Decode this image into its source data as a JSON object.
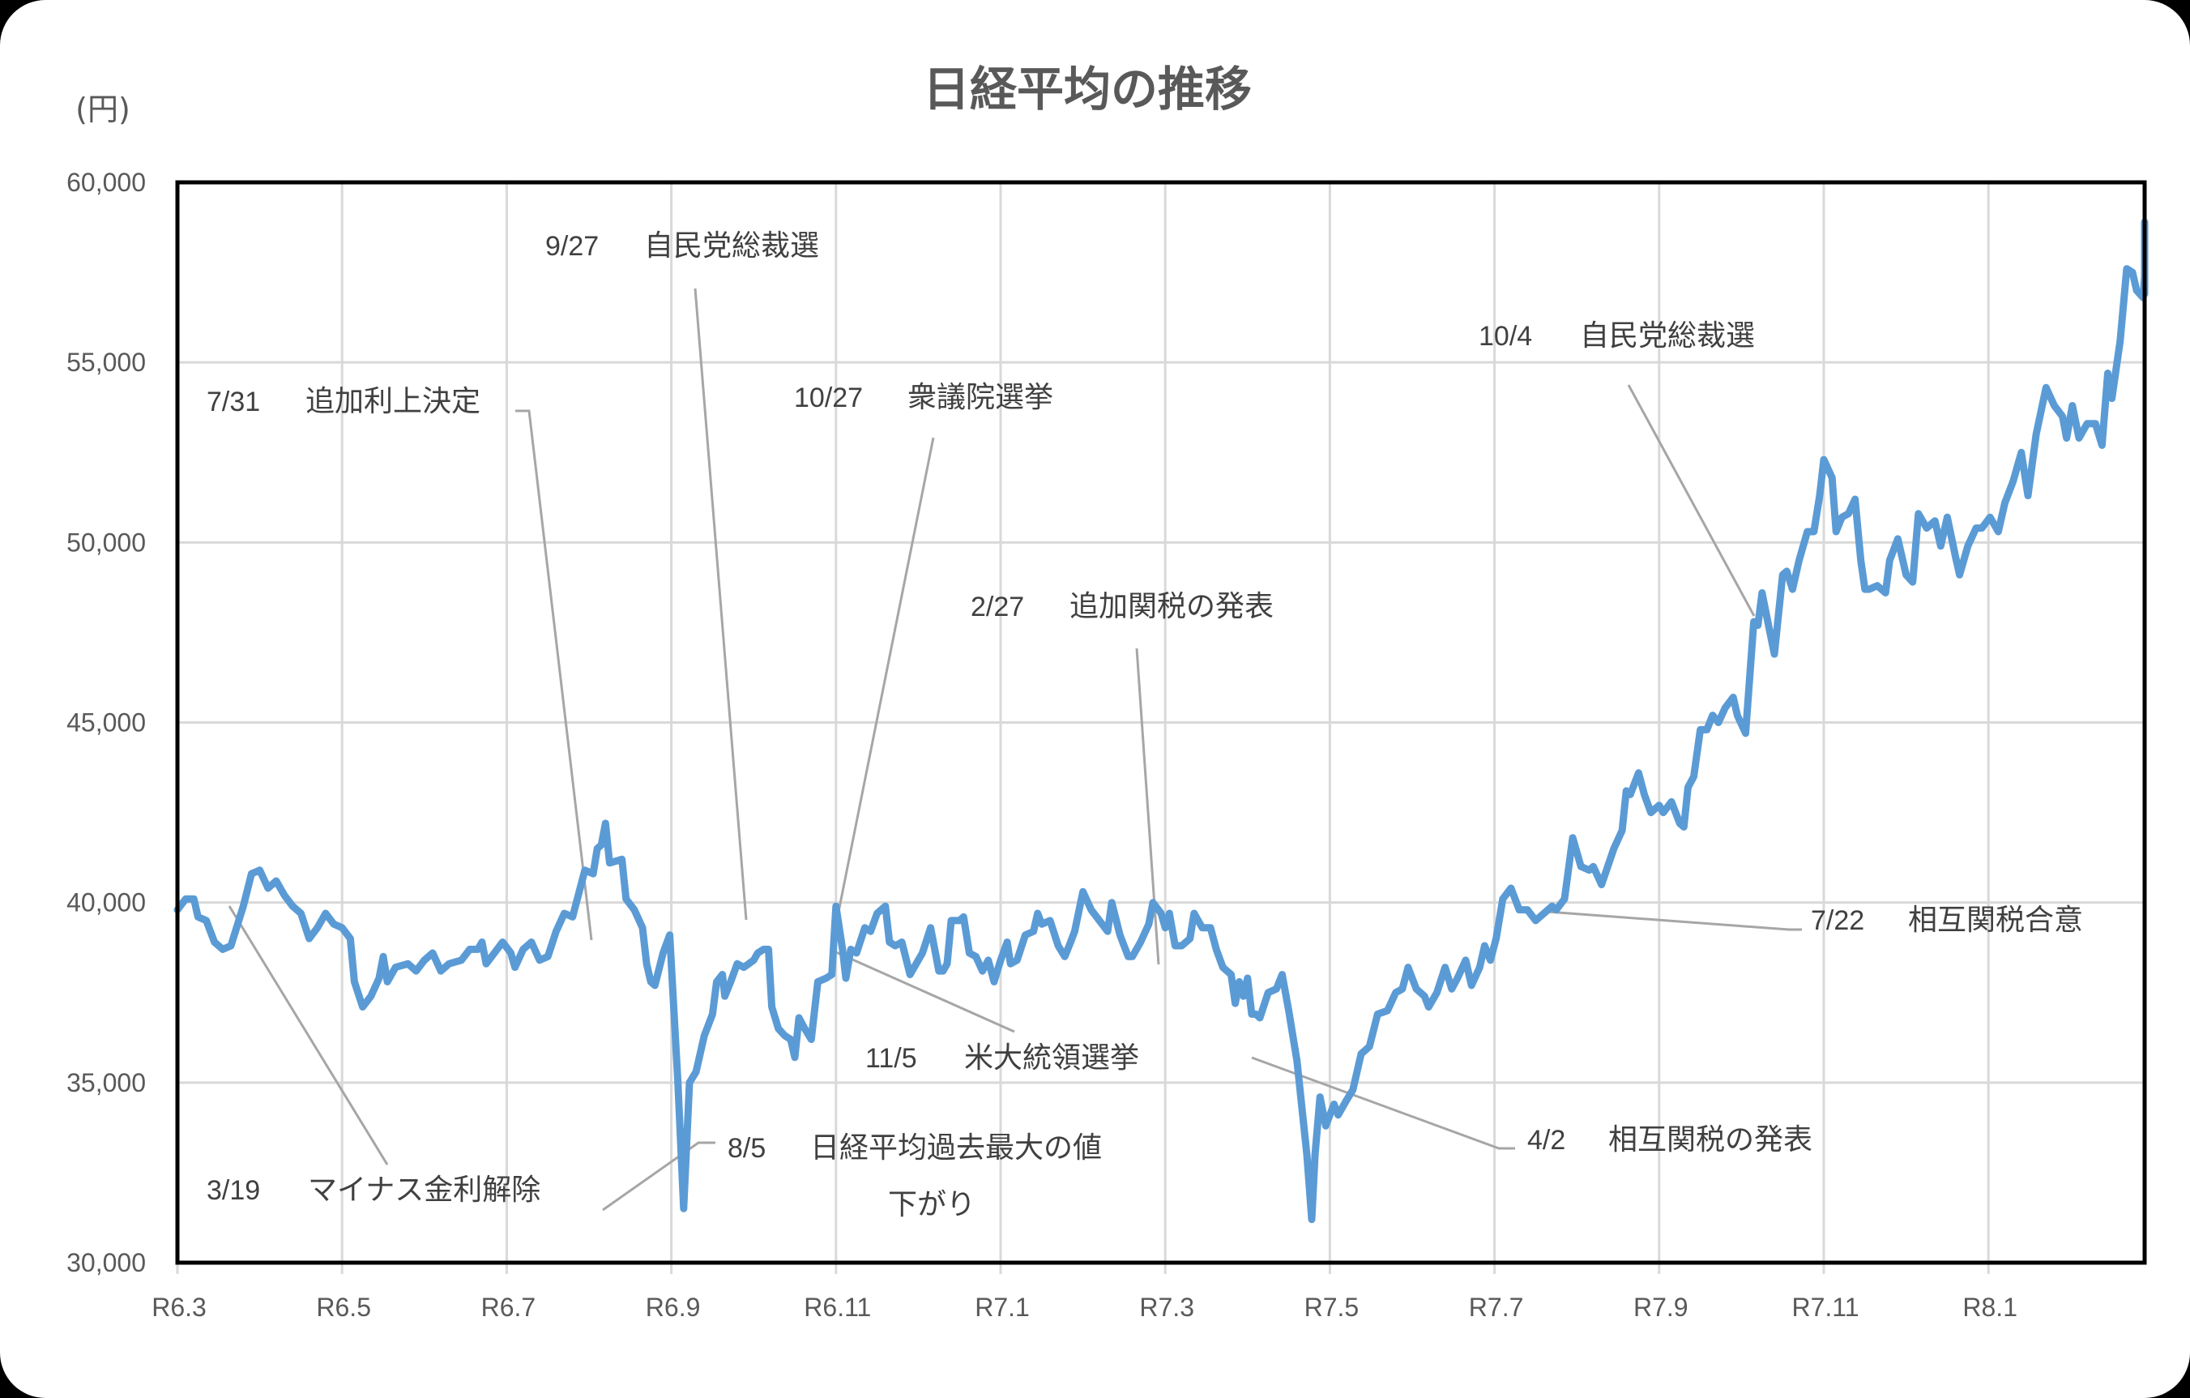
{
  "chart_data": {
    "type": "line",
    "title": "日経平均の推移",
    "ylabel": "(円)",
    "xlabel": "",
    "ylim": [
      30000,
      60000
    ],
    "yticks": [
      "30,000",
      "35,000",
      "40,000",
      "45,000",
      "50,000",
      "55,000",
      "60,000"
    ],
    "ytick_values": [
      30000,
      35000,
      40000,
      45000,
      50000,
      55000,
      60000
    ],
    "xticks": [
      "R6.3",
      "R6.5",
      "R6.7",
      "R6.9",
      "R6.11",
      "R7.1",
      "R7.3",
      "R7.5",
      "R7.7",
      "R7.9",
      "R7.11",
      "R8.1"
    ],
    "xtick_month_offsets": [
      0,
      2,
      4,
      6,
      8,
      10,
      12,
      14,
      16,
      18,
      20,
      22
    ],
    "x_unit": "months since R6.3",
    "xlim": [
      0,
      23.9
    ],
    "grid": true,
    "legend": null,
    "series": [
      {
        "name": "日経平均",
        "color": "#5B9BD5",
        "points": [
          [
            0.0,
            39800
          ],
          [
            0.1,
            40100
          ],
          [
            0.2,
            40100
          ],
          [
            0.25,
            39600
          ],
          [
            0.35,
            39500
          ],
          [
            0.45,
            38900
          ],
          [
            0.55,
            38700
          ],
          [
            0.65,
            38800
          ],
          [
            0.8,
            39900
          ],
          [
            0.9,
            40800
          ],
          [
            1.0,
            40900
          ],
          [
            1.1,
            40400
          ],
          [
            1.2,
            40600
          ],
          [
            1.3,
            40200
          ],
          [
            1.4,
            39900
          ],
          [
            1.5,
            39700
          ],
          [
            1.6,
            39000
          ],
          [
            1.7,
            39300
          ],
          [
            1.8,
            39700
          ],
          [
            1.9,
            39400
          ],
          [
            2.0,
            39300
          ],
          [
            2.1,
            39000
          ],
          [
            2.15,
            37800
          ],
          [
            2.25,
            37100
          ],
          [
            2.35,
            37400
          ],
          [
            2.45,
            37900
          ],
          [
            2.5,
            38500
          ],
          [
            2.55,
            37800
          ],
          [
            2.65,
            38200
          ],
          [
            2.8,
            38300
          ],
          [
            2.9,
            38100
          ],
          [
            3.0,
            38400
          ],
          [
            3.1,
            38600
          ],
          [
            3.2,
            38100
          ],
          [
            3.3,
            38300
          ],
          [
            3.45,
            38400
          ],
          [
            3.55,
            38700
          ],
          [
            3.65,
            38700
          ],
          [
            3.7,
            38900
          ],
          [
            3.75,
            38300
          ],
          [
            3.85,
            38600
          ],
          [
            3.95,
            38900
          ],
          [
            4.05,
            38600
          ],
          [
            4.1,
            38200
          ],
          [
            4.2,
            38700
          ],
          [
            4.3,
            38900
          ],
          [
            4.4,
            38400
          ],
          [
            4.5,
            38500
          ],
          [
            4.6,
            39200
          ],
          [
            4.7,
            39700
          ],
          [
            4.8,
            39600
          ],
          [
            4.95,
            40900
          ],
          [
            5.05,
            40800
          ],
          [
            5.1,
            41500
          ],
          [
            5.15,
            41600
          ],
          [
            5.2,
            42200
          ],
          [
            5.25,
            41100
          ],
          [
            5.4,
            41200
          ],
          [
            5.45,
            40100
          ],
          [
            5.55,
            39800
          ],
          [
            5.65,
            39300
          ],
          [
            5.7,
            38300
          ],
          [
            5.75,
            37800
          ],
          [
            5.8,
            37700
          ],
          [
            5.9,
            38600
          ],
          [
            5.98,
            39100
          ],
          [
            6.08,
            35000
          ],
          [
            6.15,
            31500
          ],
          [
            6.22,
            35000
          ],
          [
            6.3,
            35300
          ],
          [
            6.4,
            36300
          ],
          [
            6.5,
            36900
          ],
          [
            6.55,
            37800
          ],
          [
            6.62,
            38000
          ],
          [
            6.65,
            37400
          ],
          [
            6.72,
            37800
          ],
          [
            6.8,
            38300
          ],
          [
            6.88,
            38200
          ],
          [
            7.0,
            38400
          ],
          [
            7.05,
            38600
          ],
          [
            7.12,
            38700
          ],
          [
            7.18,
            38700
          ],
          [
            7.22,
            37100
          ],
          [
            7.3,
            36500
          ],
          [
            7.38,
            36300
          ],
          [
            7.45,
            36200
          ],
          [
            7.5,
            35700
          ],
          [
            7.55,
            36800
          ],
          [
            7.62,
            36500
          ],
          [
            7.7,
            36200
          ],
          [
            7.78,
            37800
          ],
          [
            7.88,
            37900
          ],
          [
            7.95,
            38000
          ],
          [
            8.0,
            39900
          ],
          [
            8.08,
            38700
          ],
          [
            8.12,
            37900
          ],
          [
            8.18,
            38700
          ],
          [
            8.25,
            38600
          ],
          [
            8.35,
            39300
          ],
          [
            8.42,
            39200
          ],
          [
            8.5,
            39700
          ],
          [
            8.6,
            39900
          ],
          [
            8.65,
            38900
          ],
          [
            8.72,
            38800
          ],
          [
            8.8,
            38900
          ],
          [
            8.9,
            38000
          ],
          [
            8.95,
            38200
          ],
          [
            9.05,
            38600
          ],
          [
            9.15,
            39300
          ],
          [
            9.25,
            38100
          ],
          [
            9.3,
            38100
          ],
          [
            9.35,
            38300
          ],
          [
            9.4,
            39500
          ],
          [
            9.5,
            39500
          ],
          [
            9.55,
            39600
          ],
          [
            9.62,
            38600
          ],
          [
            9.7,
            38500
          ],
          [
            9.78,
            38100
          ],
          [
            9.85,
            38400
          ],
          [
            9.92,
            37800
          ],
          [
            10.0,
            38400
          ],
          [
            10.08,
            38900
          ],
          [
            10.12,
            38300
          ],
          [
            10.2,
            38400
          ],
          [
            10.3,
            39100
          ],
          [
            10.4,
            39200
          ],
          [
            10.45,
            39700
          ],
          [
            10.5,
            39400
          ],
          [
            10.6,
            39500
          ],
          [
            10.7,
            38800
          ],
          [
            10.78,
            38500
          ],
          [
            10.85,
            38900
          ],
          [
            10.9,
            39200
          ],
          [
            11.0,
            40300
          ],
          [
            11.1,
            39800
          ],
          [
            11.2,
            39500
          ],
          [
            11.3,
            39200
          ],
          [
            11.35,
            40000
          ],
          [
            11.45,
            39100
          ],
          [
            11.55,
            38500
          ],
          [
            11.6,
            38500
          ],
          [
            11.7,
            38900
          ],
          [
            11.8,
            39400
          ],
          [
            11.85,
            40000
          ],
          [
            11.95,
            39700
          ],
          [
            12.0,
            39300
          ],
          [
            12.05,
            39700
          ],
          [
            12.12,
            38800
          ],
          [
            12.2,
            38800
          ],
          [
            12.3,
            39000
          ],
          [
            12.35,
            39700
          ],
          [
            12.45,
            39300
          ],
          [
            12.55,
            39300
          ],
          [
            12.62,
            38700
          ],
          [
            12.7,
            38200
          ],
          [
            12.8,
            38000
          ],
          [
            12.85,
            37200
          ],
          [
            12.9,
            37800
          ],
          [
            12.95,
            37400
          ],
          [
            13.0,
            37900
          ],
          [
            13.05,
            36900
          ],
          [
            13.1,
            36900
          ],
          [
            13.15,
            36800
          ],
          [
            13.25,
            37500
          ],
          [
            13.35,
            37600
          ],
          [
            13.42,
            38000
          ],
          [
            13.5,
            37000
          ],
          [
            13.6,
            35600
          ],
          [
            13.72,
            33000
          ],
          [
            13.78,
            31200
          ],
          [
            13.82,
            33000
          ],
          [
            13.88,
            34600
          ],
          [
            13.95,
            33800
          ],
          [
            14.05,
            34400
          ],
          [
            14.1,
            34100
          ],
          [
            14.2,
            34500
          ],
          [
            14.28,
            34800
          ],
          [
            14.38,
            35800
          ],
          [
            14.48,
            36000
          ],
          [
            14.58,
            36900
          ],
          [
            14.7,
            37000
          ],
          [
            14.8,
            37500
          ],
          [
            14.88,
            37600
          ],
          [
            14.95,
            38200
          ],
          [
            15.05,
            37600
          ],
          [
            15.15,
            37400
          ],
          [
            15.2,
            37100
          ],
          [
            15.3,
            37500
          ],
          [
            15.4,
            38200
          ],
          [
            15.48,
            37600
          ],
          [
            15.55,
            37900
          ],
          [
            15.65,
            38400
          ],
          [
            15.72,
            37700
          ],
          [
            15.82,
            38200
          ],
          [
            15.88,
            38800
          ],
          [
            15.95,
            38400
          ],
          [
            16.02,
            39000
          ],
          [
            16.1,
            40100
          ],
          [
            16.2,
            40400
          ],
          [
            16.3,
            39800
          ],
          [
            16.4,
            39800
          ],
          [
            16.5,
            39500
          ],
          [
            16.6,
            39700
          ],
          [
            16.7,
            39900
          ],
          [
            16.75,
            39800
          ],
          [
            16.85,
            40100
          ],
          [
            16.95,
            41800
          ],
          [
            17.05,
            41000
          ],
          [
            17.15,
            40900
          ],
          [
            17.2,
            41000
          ],
          [
            17.3,
            40500
          ],
          [
            17.45,
            41500
          ],
          [
            17.55,
            42000
          ],
          [
            17.6,
            43100
          ],
          [
            17.65,
            43000
          ],
          [
            17.75,
            43600
          ],
          [
            17.82,
            43000
          ],
          [
            17.9,
            42500
          ],
          [
            18.0,
            42700
          ],
          [
            18.05,
            42500
          ],
          [
            18.15,
            42800
          ],
          [
            18.25,
            42200
          ],
          [
            18.3,
            42100
          ],
          [
            18.35,
            43200
          ],
          [
            18.42,
            43500
          ],
          [
            18.5,
            44800
          ],
          [
            18.58,
            44800
          ],
          [
            18.65,
            45200
          ],
          [
            18.72,
            45000
          ],
          [
            18.8,
            45400
          ],
          [
            18.9,
            45700
          ],
          [
            18.95,
            45200
          ],
          [
            19.05,
            44700
          ],
          [
            19.15,
            47800
          ],
          [
            19.2,
            47700
          ],
          [
            19.25,
            48600
          ],
          [
            19.32,
            47800
          ],
          [
            19.4,
            46900
          ],
          [
            19.5,
            49100
          ],
          [
            19.55,
            49200
          ],
          [
            19.62,
            48700
          ],
          [
            19.7,
            49500
          ],
          [
            19.8,
            50300
          ],
          [
            19.88,
            50300
          ],
          [
            19.95,
            51300
          ],
          [
            20.0,
            52300
          ],
          [
            20.1,
            51800
          ],
          [
            20.15,
            50300
          ],
          [
            20.22,
            50700
          ],
          [
            20.3,
            50800
          ],
          [
            20.38,
            51200
          ],
          [
            20.45,
            49500
          ],
          [
            20.5,
            48700
          ],
          [
            20.55,
            48700
          ],
          [
            20.65,
            48800
          ],
          [
            20.75,
            48600
          ],
          [
            20.8,
            49500
          ],
          [
            20.9,
            50100
          ],
          [
            21.0,
            49100
          ],
          [
            21.08,
            48900
          ],
          [
            21.15,
            50800
          ],
          [
            21.25,
            50400
          ],
          [
            21.35,
            50600
          ],
          [
            21.42,
            49900
          ],
          [
            21.5,
            50700
          ],
          [
            21.6,
            49600
          ],
          [
            21.65,
            49100
          ],
          [
            21.75,
            49900
          ],
          [
            21.85,
            50400
          ],
          [
            21.92,
            50400
          ],
          [
            22.02,
            50700
          ],
          [
            22.12,
            50300
          ],
          [
            22.2,
            51100
          ],
          [
            22.3,
            51700
          ],
          [
            22.4,
            52500
          ],
          [
            22.48,
            51300
          ],
          [
            22.58,
            53000
          ],
          [
            22.7,
            54300
          ],
          [
            22.8,
            53800
          ],
          [
            22.9,
            53500
          ],
          [
            22.95,
            52900
          ],
          [
            23.02,
            53800
          ],
          [
            23.1,
            52900
          ],
          [
            23.2,
            53300
          ],
          [
            23.3,
            53300
          ],
          [
            23.38,
            52700
          ],
          [
            23.45,
            54700
          ],
          [
            23.5,
            54000
          ],
          [
            23.6,
            55600
          ],
          [
            23.68,
            57600
          ],
          [
            23.75,
            57500
          ],
          [
            23.8,
            57000
          ],
          [
            23.88,
            56800
          ],
          [
            23.92,
            57400
          ],
          [
            23.98,
            56900
          ],
          [
            24.05,
            57300
          ],
          [
            24.12,
            58500
          ],
          [
            24.2,
            58900
          ]
        ]
      }
    ],
    "annotations": [
      {
        "date": "3/19",
        "text": "マイナス金利解除"
      },
      {
        "date": "7/31",
        "text": "追加利上決定"
      },
      {
        "date": "8/5",
        "text": "日経平均過去最大の値",
        "text2": "下がり"
      },
      {
        "date": "9/27",
        "text": "自民党総裁選"
      },
      {
        "date": "10/27",
        "text": "衆議院選挙"
      },
      {
        "date": "11/5",
        "text": "米大統領選挙"
      },
      {
        "date": "2/27",
        "text": "追加関税の発表"
      },
      {
        "date": "4/2",
        "text": "相互関税の発表"
      },
      {
        "date": "7/22",
        "text": "相互関税合意"
      },
      {
        "date": "10/4",
        "text": "自民党総裁選"
      }
    ]
  }
}
